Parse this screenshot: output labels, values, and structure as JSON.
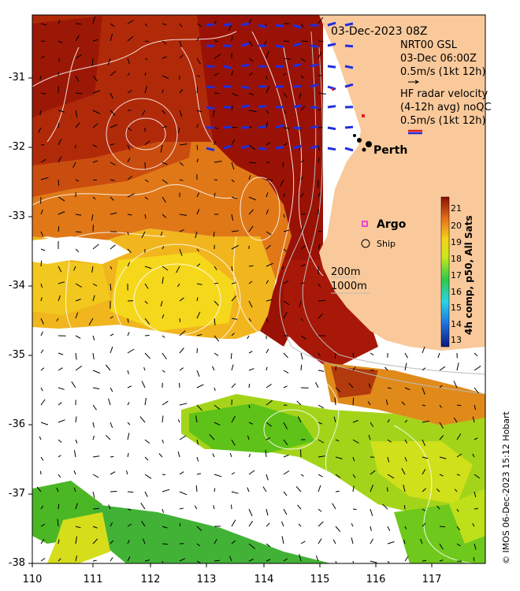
{
  "map": {
    "date_label": "03-Dec-2023 08Z",
    "gsl_title": "NRT00 GSL",
    "gsl_time": "03-Dec 06:00Z",
    "gsl_scale": "0.5m/s (1kt 12h)",
    "hf_title": "HF radar velocity",
    "hf_subtitle": "(4-12h avg) noQC",
    "hf_scale": "0.5m/s (1kt 12h)",
    "city": "Perth",
    "argo_label": "Argo",
    "ship_label": "Ship",
    "depth_200": "200m",
    "depth_1000": "1000m",
    "credit": "© IMOS 06-Dec-2023 15:12 Hobart",
    "colorbar_label": "4h comp, p50, All Sats",
    "colorbar_ticks": [
      "21",
      "20",
      "19",
      "18",
      "17",
      "16",
      "15",
      "14",
      "13"
    ],
    "x_ticks": [
      "110",
      "111",
      "112",
      "113",
      "114",
      "115",
      "116",
      "117"
    ],
    "y_ticks": [
      "-31",
      "-32",
      "-33",
      "-34",
      "-35",
      "-36",
      "-37",
      "-38"
    ],
    "colors": {
      "land": "#f9c99b",
      "hot": "#9a1205",
      "warm": "#d05a12",
      "mid": "#f09a1a",
      "yellow": "#f5e31a",
      "green": "#7fcf1a",
      "hf_arrow": "#1f2fe0",
      "argo": "#e020e0"
    }
  }
}
